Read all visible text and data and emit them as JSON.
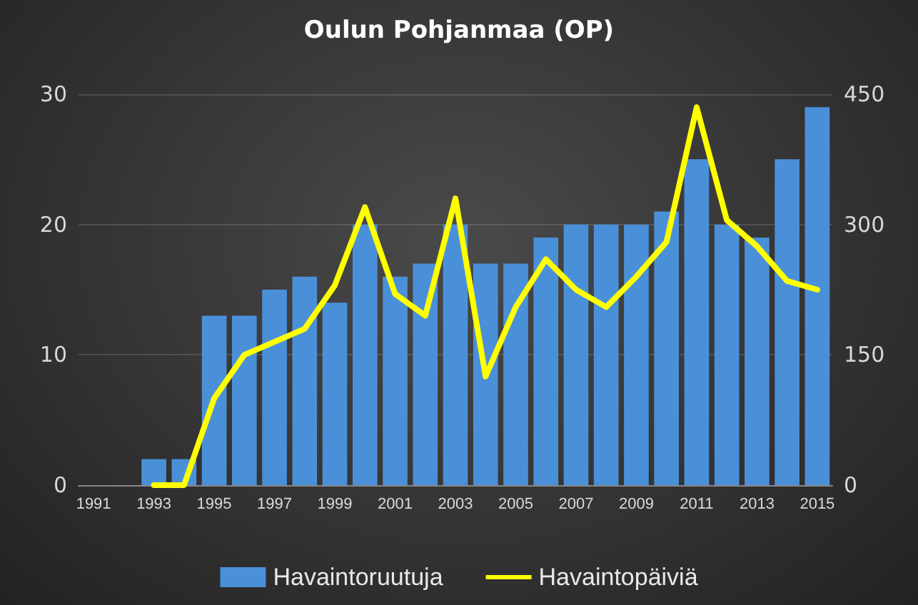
{
  "chart_data": {
    "type": "bar",
    "title": "Oulun Pohjanmaa (OP)",
    "categories": [
      "1991",
      null,
      "1993",
      null,
      "1995",
      null,
      "1997",
      null,
      "1999",
      null,
      "2001",
      null,
      "2003",
      null,
      "2005",
      null,
      "2007",
      null,
      "2009",
      null,
      "2011",
      null,
      "2013",
      null,
      "2015"
    ],
    "series": [
      {
        "name": "Havaintoruutuja",
        "color": "#4a90d9",
        "values": [
          0,
          0,
          2,
          2,
          13,
          13,
          15,
          16,
          14,
          20,
          16,
          17,
          20,
          17,
          17,
          19,
          20,
          20,
          20,
          21,
          25,
          20,
          19,
          25,
          29
        ]
      },
      {
        "name": "Havaintopäiviä",
        "type": "line",
        "axis": "y2",
        "color": "#ffff00",
        "values": [
          null,
          null,
          0,
          0,
          100,
          150,
          165,
          180,
          230,
          320,
          220,
          195,
          330,
          125,
          205,
          260,
          225,
          205,
          240,
          280,
          435,
          305,
          275,
          235,
          225
        ]
      }
    ],
    "ylim": [
      0,
      30
    ],
    "yticks": [
      0,
      10,
      20,
      30
    ],
    "y2lim": [
      0,
      450
    ],
    "y2ticks": [
      0,
      150,
      300,
      450
    ],
    "grid": "y",
    "legend": "bottom",
    "marker": "none",
    "line_style": "solid"
  }
}
